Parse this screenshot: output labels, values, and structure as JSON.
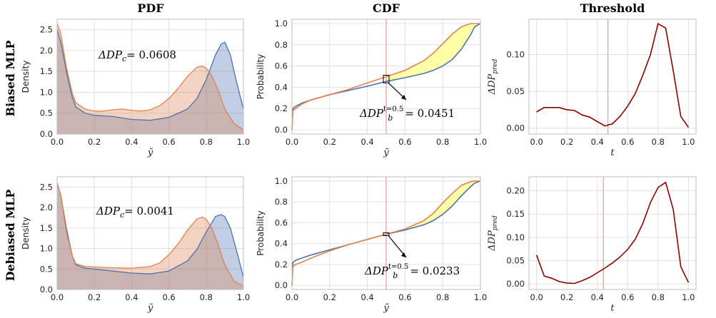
{
  "figure": {
    "col_titles": [
      "PDF",
      "CDF",
      "Threshold"
    ],
    "row_labels": [
      "Biased MLP",
      "Debiased MLP"
    ],
    "colors": {
      "blue": "#4c72b0",
      "orange": "#dd8452",
      "threshold_line": "#8b0000",
      "vline": "#e8a0a0",
      "fill_between": "#ffff99"
    }
  },
  "chart_data": [
    {
      "type": "area",
      "panel": "pdf-biased",
      "title": "PDF",
      "xlabel": "ỹ",
      "ylabel": "Density",
      "xlim": [
        0,
        1
      ],
      "ylim": [
        0,
        2.75
      ],
      "xticks": [
        "0.0",
        "0.2",
        "0.4",
        "0.6",
        "0.8",
        "1.0"
      ],
      "yticks": [
        "0.0",
        "0.5",
        "1.0",
        "1.5",
        "2.0",
        "2.5"
      ],
      "annotation": {
        "label": "ΔDP",
        "sub": "c",
        "value": "= 0.0608"
      },
      "series": [
        {
          "color": "blue",
          "x": [
            0,
            0.02,
            0.05,
            0.08,
            0.1,
            0.15,
            0.2,
            0.3,
            0.4,
            0.5,
            0.6,
            0.7,
            0.75,
            0.8,
            0.85,
            0.88,
            0.9,
            0.93,
            0.96,
            1.0
          ],
          "y": [
            2.5,
            2.2,
            1.5,
            0.9,
            0.65,
            0.5,
            0.45,
            0.42,
            0.35,
            0.33,
            0.4,
            0.6,
            0.85,
            1.3,
            1.9,
            2.15,
            2.2,
            1.9,
            1.3,
            0.6
          ]
        },
        {
          "color": "orange",
          "x": [
            0,
            0.02,
            0.05,
            0.08,
            0.1,
            0.15,
            0.2,
            0.25,
            0.3,
            0.35,
            0.4,
            0.45,
            0.5,
            0.55,
            0.6,
            0.65,
            0.7,
            0.75,
            0.78,
            0.8,
            0.83,
            0.86,
            0.9,
            0.95,
            1.0
          ],
          "y": [
            2.65,
            2.4,
            1.6,
            1.0,
            0.75,
            0.6,
            0.55,
            0.55,
            0.58,
            0.6,
            0.57,
            0.55,
            0.58,
            0.68,
            0.85,
            1.1,
            1.38,
            1.6,
            1.63,
            1.58,
            1.4,
            1.1,
            0.6,
            0.25,
            0.1
          ]
        }
      ]
    },
    {
      "type": "line",
      "panel": "cdf-biased",
      "title": "CDF",
      "xlabel": "ỹ",
      "ylabel": "Probability",
      "xlim": [
        0,
        1
      ],
      "ylim": [
        -0.04,
        1.04
      ],
      "vline": 0.5,
      "xticks": [
        "0.0",
        "0.2",
        "0.4",
        "0.6",
        "0.8",
        "1.0"
      ],
      "yticks": [
        "0.0",
        "0.2",
        "0.4",
        "0.6",
        "0.8",
        "1.0"
      ],
      "annotation": {
        "label": "ΔDP",
        "sub": "b",
        "sup": "t=0.5",
        "value": "= 0.0451"
      },
      "series": [
        {
          "color": "blue",
          "x": [
            0,
            0.005,
            0.02,
            0.05,
            0.1,
            0.2,
            0.3,
            0.4,
            0.5,
            0.6,
            0.7,
            0.75,
            0.8,
            0.85,
            0.9,
            0.95,
            0.97,
            1.0
          ],
          "y": [
            0,
            0.2,
            0.22,
            0.25,
            0.28,
            0.33,
            0.37,
            0.41,
            0.455,
            0.49,
            0.53,
            0.56,
            0.6,
            0.66,
            0.76,
            0.9,
            0.97,
            1.0
          ]
        },
        {
          "color": "orange",
          "x": [
            0,
            0.005,
            0.02,
            0.05,
            0.1,
            0.2,
            0.3,
            0.4,
            0.5,
            0.6,
            0.7,
            0.75,
            0.8,
            0.85,
            0.9,
            0.95,
            0.97,
            1.0
          ],
          "y": [
            0,
            0.18,
            0.2,
            0.24,
            0.28,
            0.33,
            0.38,
            0.44,
            0.5,
            0.56,
            0.65,
            0.72,
            0.81,
            0.9,
            0.97,
            1.0,
            1.0,
            1.0
          ]
        }
      ]
    },
    {
      "type": "line",
      "panel": "threshold-biased",
      "title": "Threshold",
      "xlabel": "t",
      "ylabel": "ΔDP",
      "ylabel_sub": "pred",
      "xlim": [
        -0.05,
        1.05
      ],
      "ylim": [
        -0.008,
        0.148
      ],
      "vline": 0.47,
      "xticks": [
        "0.0",
        "0.2",
        "0.4",
        "0.6",
        "0.8",
        "1.0"
      ],
      "yticks": [
        "0.00",
        "0.05",
        "0.10"
      ],
      "series": [
        {
          "color": "threshold_line",
          "x": [
            0,
            0.05,
            0.1,
            0.15,
            0.2,
            0.25,
            0.3,
            0.35,
            0.4,
            0.45,
            0.5,
            0.55,
            0.6,
            0.65,
            0.7,
            0.75,
            0.8,
            0.85,
            0.9,
            0.95,
            1.0
          ],
          "y": [
            0.022,
            0.028,
            0.028,
            0.028,
            0.025,
            0.024,
            0.018,
            0.015,
            0.009,
            0.003,
            0.006,
            0.016,
            0.03,
            0.047,
            0.072,
            0.1,
            0.142,
            0.136,
            0.078,
            0.016,
            0.001
          ]
        }
      ]
    },
    {
      "type": "area",
      "panel": "pdf-debiased",
      "title": "",
      "xlabel": "ỹ",
      "ylabel": "Density",
      "xlim": [
        0,
        1
      ],
      "ylim": [
        0,
        2.75
      ],
      "xticks": [
        "0.0",
        "0.2",
        "0.4",
        "0.6",
        "0.8",
        "1.0"
      ],
      "yticks": [
        "0.0",
        "0.5",
        "1.0",
        "1.5",
        "2.0",
        "2.5"
      ],
      "annotation": {
        "label": "ΔDP",
        "sub": "c",
        "value": "= 0.0041"
      },
      "series": [
        {
          "color": "blue",
          "x": [
            0,
            0.02,
            0.05,
            0.08,
            0.1,
            0.15,
            0.2,
            0.3,
            0.4,
            0.5,
            0.6,
            0.7,
            0.75,
            0.8,
            0.85,
            0.88,
            0.9,
            0.93,
            0.96,
            1.0
          ],
          "y": [
            2.6,
            2.3,
            1.5,
            0.85,
            0.6,
            0.52,
            0.5,
            0.45,
            0.4,
            0.38,
            0.45,
            0.7,
            0.98,
            1.4,
            1.78,
            1.83,
            1.78,
            1.5,
            1.0,
            0.3
          ]
        },
        {
          "color": "orange",
          "x": [
            0,
            0.02,
            0.05,
            0.08,
            0.1,
            0.15,
            0.2,
            0.3,
            0.4,
            0.5,
            0.55,
            0.6,
            0.65,
            0.7,
            0.75,
            0.78,
            0.8,
            0.83,
            0.86,
            0.9,
            0.95,
            1.0
          ],
          "y": [
            2.6,
            2.3,
            1.4,
            0.85,
            0.63,
            0.56,
            0.55,
            0.53,
            0.52,
            0.56,
            0.65,
            0.85,
            1.12,
            1.45,
            1.72,
            1.77,
            1.72,
            1.5,
            1.15,
            0.6,
            0.2,
            0.08
          ]
        }
      ]
    },
    {
      "type": "line",
      "panel": "cdf-debiased",
      "title": "",
      "xlabel": "ỹ",
      "ylabel": "Probability",
      "xlim": [
        0,
        1
      ],
      "ylim": [
        -0.04,
        1.04
      ],
      "vline": 0.5,
      "xticks": [
        "0.0",
        "0.2",
        "0.4",
        "0.6",
        "0.8",
        "1.0"
      ],
      "yticks": [
        "0.0",
        "0.2",
        "0.4",
        "0.6",
        "0.8",
        "1.0"
      ],
      "annotation": {
        "label": "ΔDP",
        "sub": "b",
        "sup": "t=0.5",
        "value": "= 0.0233"
      },
      "series": [
        {
          "color": "blue",
          "x": [
            0,
            0.005,
            0.02,
            0.05,
            0.1,
            0.2,
            0.3,
            0.4,
            0.5,
            0.6,
            0.7,
            0.75,
            0.8,
            0.85,
            0.9,
            0.95,
            0.97,
            1.0
          ],
          "y": [
            0,
            0.22,
            0.24,
            0.26,
            0.29,
            0.34,
            0.39,
            0.44,
            0.49,
            0.53,
            0.58,
            0.62,
            0.68,
            0.76,
            0.86,
            0.95,
            0.98,
            1.0
          ]
        },
        {
          "color": "orange",
          "x": [
            0,
            0.005,
            0.02,
            0.05,
            0.1,
            0.2,
            0.3,
            0.4,
            0.5,
            0.6,
            0.7,
            0.75,
            0.8,
            0.85,
            0.9,
            0.95,
            0.97,
            1.0
          ],
          "y": [
            0,
            0.18,
            0.2,
            0.22,
            0.26,
            0.33,
            0.39,
            0.44,
            0.49,
            0.54,
            0.62,
            0.69,
            0.79,
            0.88,
            0.96,
            0.995,
            1.0,
            1.0
          ]
        }
      ]
    },
    {
      "type": "line",
      "panel": "threshold-debiased",
      "title": "",
      "xlabel": "t",
      "ylabel": "ΔDP",
      "ylabel_sub": "pred",
      "xlim": [
        -0.05,
        1.05
      ],
      "ylim": [
        -0.012,
        0.23
      ],
      "vline": 0.44,
      "xticks": [
        "0.0",
        "0.2",
        "0.4",
        "0.6",
        "0.8",
        "1.0"
      ],
      "yticks": [
        "0.00",
        "0.05",
        "0.10",
        "0.15",
        "0.20"
      ],
      "series": [
        {
          "color": "threshold_line",
          "x": [
            0,
            0.05,
            0.1,
            0.15,
            0.2,
            0.25,
            0.3,
            0.35,
            0.4,
            0.45,
            0.5,
            0.55,
            0.6,
            0.65,
            0.7,
            0.75,
            0.8,
            0.85,
            0.9,
            0.95,
            1.0
          ],
          "y": [
            0.062,
            0.017,
            0.012,
            0.005,
            0.002,
            0.001,
            0.007,
            0.014,
            0.024,
            0.034,
            0.045,
            0.058,
            0.074,
            0.096,
            0.13,
            0.175,
            0.207,
            0.218,
            0.16,
            0.037,
            0.003
          ]
        }
      ]
    }
  ]
}
